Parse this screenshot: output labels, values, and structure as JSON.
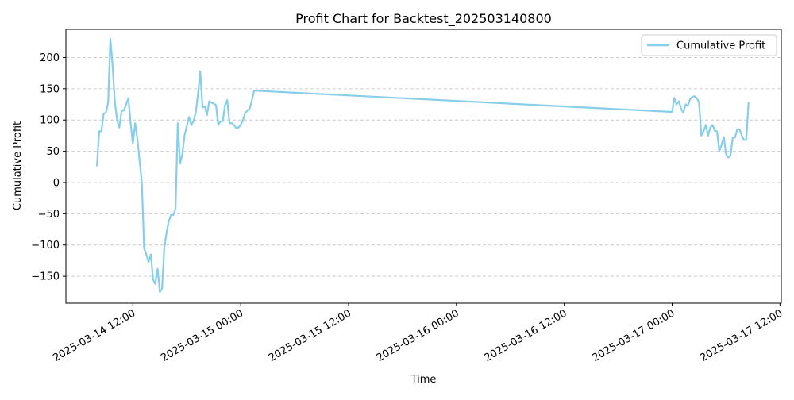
{
  "chart_data": {
    "type": "line",
    "title": "Profit Chart for Backtest_202503140800",
    "xlabel": "Time",
    "ylabel": "Cumulative Profit",
    "x_ticks": [
      "2025-03-14 12:00",
      "2025-03-15 00:00",
      "2025-03-15 12:00",
      "2025-03-16 00:00",
      "2025-03-16 12:00",
      "2025-03-17 00:00",
      "2025-03-17 12:00"
    ],
    "y_ticks": [
      -150,
      -100,
      -50,
      0,
      50,
      100,
      150,
      200
    ],
    "xlim": [
      "2025-03-14 04:33",
      "2025-03-17 12:09"
    ],
    "ylim": [
      -193,
      245
    ],
    "grid": "y-axis dashed",
    "legend_position": "top-right",
    "colors": {
      "series": "#87ceeb",
      "grid": "#cccccc"
    },
    "series": [
      {
        "name": "Cumulative Profit",
        "points": [
          [
            "2025-03-14 08:00",
            27
          ],
          [
            "2025-03-14 08:15",
            82
          ],
          [
            "2025-03-14 08:30",
            82
          ],
          [
            "2025-03-14 08:45",
            110
          ],
          [
            "2025-03-14 09:00",
            112
          ],
          [
            "2025-03-14 09:15",
            128
          ],
          [
            "2025-03-14 09:30",
            230
          ],
          [
            "2025-03-14 09:45",
            185
          ],
          [
            "2025-03-14 10:00",
            128
          ],
          [
            "2025-03-14 10:15",
            100
          ],
          [
            "2025-03-14 10:30",
            88
          ],
          [
            "2025-03-14 10:45",
            115
          ],
          [
            "2025-03-14 11:00",
            115
          ],
          [
            "2025-03-14 11:15",
            125
          ],
          [
            "2025-03-14 11:30",
            135
          ],
          [
            "2025-03-14 11:45",
            95
          ],
          [
            "2025-03-14 12:00",
            62
          ],
          [
            "2025-03-14 12:15",
            95
          ],
          [
            "2025-03-14 12:30",
            70
          ],
          [
            "2025-03-14 12:45",
            35
          ],
          [
            "2025-03-14 13:00",
            0
          ],
          [
            "2025-03-14 13:15",
            -105
          ],
          [
            "2025-03-14 13:30",
            -115
          ],
          [
            "2025-03-14 13:45",
            -127
          ],
          [
            "2025-03-14 14:00",
            -115
          ],
          [
            "2025-03-14 14:15",
            -155
          ],
          [
            "2025-03-14 14:30",
            -162
          ],
          [
            "2025-03-14 14:45",
            -138
          ],
          [
            "2025-03-14 15:00",
            -175
          ],
          [
            "2025-03-14 15:15",
            -170
          ],
          [
            "2025-03-14 15:30",
            -105
          ],
          [
            "2025-03-14 15:45",
            -80
          ],
          [
            "2025-03-14 16:00",
            -62
          ],
          [
            "2025-03-14 16:15",
            -52
          ],
          [
            "2025-03-14 16:30",
            -52
          ],
          [
            "2025-03-14 16:45",
            -42
          ],
          [
            "2025-03-14 17:00",
            95
          ],
          [
            "2025-03-14 17:15",
            30
          ],
          [
            "2025-03-14 17:30",
            45
          ],
          [
            "2025-03-14 17:45",
            75
          ],
          [
            "2025-03-14 18:00",
            90
          ],
          [
            "2025-03-14 18:15",
            105
          ],
          [
            "2025-03-14 18:30",
            92
          ],
          [
            "2025-03-14 18:45",
            98
          ],
          [
            "2025-03-14 19:00",
            112
          ],
          [
            "2025-03-14 19:15",
            142
          ],
          [
            "2025-03-14 19:30",
            178
          ],
          [
            "2025-03-14 19:45",
            120
          ],
          [
            "2025-03-14 20:00",
            122
          ],
          [
            "2025-03-14 20:15",
            108
          ],
          [
            "2025-03-14 20:30",
            130
          ],
          [
            "2025-03-14 20:45",
            128
          ],
          [
            "2025-03-14 21:00",
            126
          ],
          [
            "2025-03-14 21:15",
            124
          ],
          [
            "2025-03-14 21:30",
            92
          ],
          [
            "2025-03-14 21:45",
            98
          ],
          [
            "2025-03-14 22:00",
            98
          ],
          [
            "2025-03-14 22:15",
            123
          ],
          [
            "2025-03-14 22:30",
            132
          ],
          [
            "2025-03-14 22:45",
            95
          ],
          [
            "2025-03-14 23:00",
            95
          ],
          [
            "2025-03-14 23:15",
            92
          ],
          [
            "2025-03-14 23:30",
            87
          ],
          [
            "2025-03-14 23:45",
            88
          ],
          [
            "2025-03-15 00:00",
            92
          ],
          [
            "2025-03-15 00:15",
            100
          ],
          [
            "2025-03-15 00:30",
            111
          ],
          [
            "2025-03-15 00:45",
            115
          ],
          [
            "2025-03-15 01:00",
            118
          ],
          [
            "2025-03-15 01:15",
            132
          ],
          [
            "2025-03-15 01:30",
            147
          ],
          [
            "2025-03-17 00:00",
            113
          ],
          [
            "2025-03-17 00:15",
            135
          ],
          [
            "2025-03-17 00:30",
            125
          ],
          [
            "2025-03-17 00:45",
            130
          ],
          [
            "2025-03-17 01:00",
            118
          ],
          [
            "2025-03-17 01:15",
            112
          ],
          [
            "2025-03-17 01:30",
            125
          ],
          [
            "2025-03-17 01:45",
            123
          ],
          [
            "2025-03-17 02:00",
            133
          ],
          [
            "2025-03-17 02:15",
            137
          ],
          [
            "2025-03-17 02:30",
            138
          ],
          [
            "2025-03-17 02:45",
            135
          ],
          [
            "2025-03-17 03:00",
            128
          ],
          [
            "2025-03-17 03:15",
            75
          ],
          [
            "2025-03-17 03:30",
            82
          ],
          [
            "2025-03-17 03:45",
            92
          ],
          [
            "2025-03-17 04:00",
            75
          ],
          [
            "2025-03-17 04:15",
            88
          ],
          [
            "2025-03-17 04:30",
            92
          ],
          [
            "2025-03-17 04:45",
            83
          ],
          [
            "2025-03-17 05:00",
            82
          ],
          [
            "2025-03-17 05:15",
            50
          ],
          [
            "2025-03-17 05:30",
            60
          ],
          [
            "2025-03-17 05:45",
            73
          ],
          [
            "2025-03-17 06:00",
            45
          ],
          [
            "2025-03-17 06:15",
            40
          ],
          [
            "2025-03-17 06:30",
            43
          ],
          [
            "2025-03-17 06:45",
            72
          ],
          [
            "2025-03-17 07:00",
            72
          ],
          [
            "2025-03-17 07:15",
            85
          ],
          [
            "2025-03-17 07:30",
            85
          ],
          [
            "2025-03-17 07:45",
            75
          ],
          [
            "2025-03-17 08:00",
            68
          ],
          [
            "2025-03-17 08:15",
            68
          ],
          [
            "2025-03-17 08:30",
            128
          ]
        ]
      }
    ]
  }
}
